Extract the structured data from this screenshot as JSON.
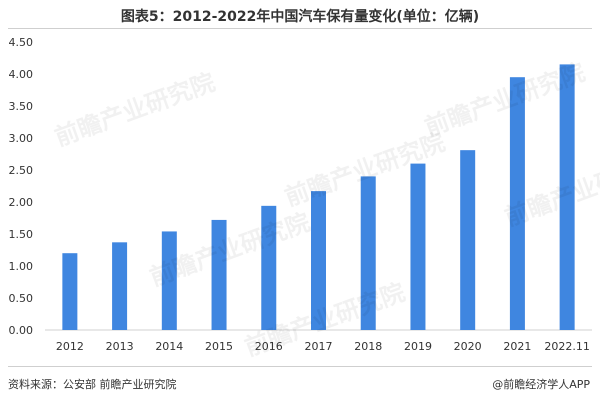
{
  "title": "图表5：2012-2022年中国汽车保有量变化(单位：亿辆)",
  "source": "资料来源：公安部 前瞻产业研究院",
  "credit": "@前瞻经济学人APP",
  "watermark": "前瞻产业研究院",
  "colors": {
    "bar": "#3f86e0",
    "axis_text": "#333333",
    "baseline": "#d0d0d0"
  },
  "chart_data": {
    "type": "bar",
    "title": "图表5：2012-2022年中国汽车保有量变化(单位：亿辆)",
    "categories": [
      "2012",
      "2013",
      "2014",
      "2015",
      "2016",
      "2017",
      "2018",
      "2019",
      "2020",
      "2021",
      "2022.11"
    ],
    "values": [
      1.2,
      1.37,
      1.54,
      1.72,
      1.94,
      2.17,
      2.4,
      2.6,
      2.81,
      3.95,
      4.15
    ],
    "ylim": [
      0,
      4.5
    ],
    "yticks": [
      "0.00",
      "0.50",
      "1.00",
      "1.50",
      "2.00",
      "2.50",
      "3.00",
      "3.50",
      "4.00",
      "4.50"
    ],
    "xlabel": "",
    "ylabel": "",
    "grid": false,
    "legend": "none"
  }
}
